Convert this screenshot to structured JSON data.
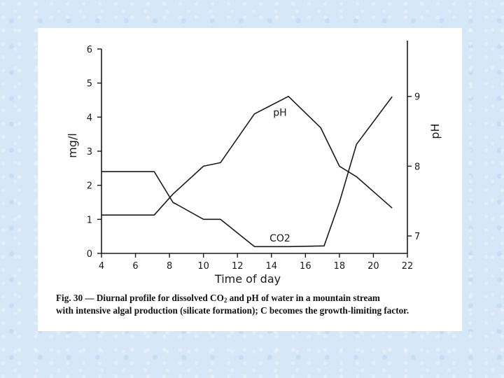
{
  "chart_data": {
    "type": "line",
    "xlabel": "Time of day",
    "x_ticks": [
      4,
      6,
      8,
      10,
      12,
      14,
      16,
      18,
      20,
      22
    ],
    "xlim": [
      4,
      22
    ],
    "ylabel_left": "mg/l",
    "y_left_ticks": [
      0,
      1,
      2,
      3,
      4,
      5,
      6
    ],
    "ylim_left": [
      0,
      6
    ],
    "ylabel_right": "pH",
    "y_right_ticks": [
      7,
      8,
      9
    ],
    "ylim_right": [
      6.75,
      9.8
    ],
    "grid": false,
    "series": [
      {
        "name": "pH",
        "axis": "right",
        "x": [
          4,
          7.1,
          8.2,
          10,
          11,
          13,
          15,
          16.9,
          18,
          19,
          21.1
        ],
        "y": [
          7.3,
          7.3,
          7.6,
          8.0,
          8.05,
          8.75,
          9.0,
          8.55,
          8.0,
          7.85,
          7.4
        ]
      },
      {
        "name": "CO2",
        "axis": "left",
        "x": [
          4,
          7.1,
          8.2,
          10,
          11,
          13,
          15,
          17.1,
          18,
          19,
          21.1
        ],
        "y": [
          2.4,
          2.4,
          1.5,
          1.0,
          1.0,
          0.2,
          0.2,
          0.22,
          1.5,
          3.2,
          4.6
        ]
      }
    ]
  },
  "caption": {
    "before_sub_1": "Fig. 30 — Diurnal profile for dissolved CO",
    "sub_1": "2",
    "after_sub_1": " and pH of water in a mountain stream",
    "line_2": "with intensive algal production (silicate formation); C becomes the growth-limiting factor."
  }
}
